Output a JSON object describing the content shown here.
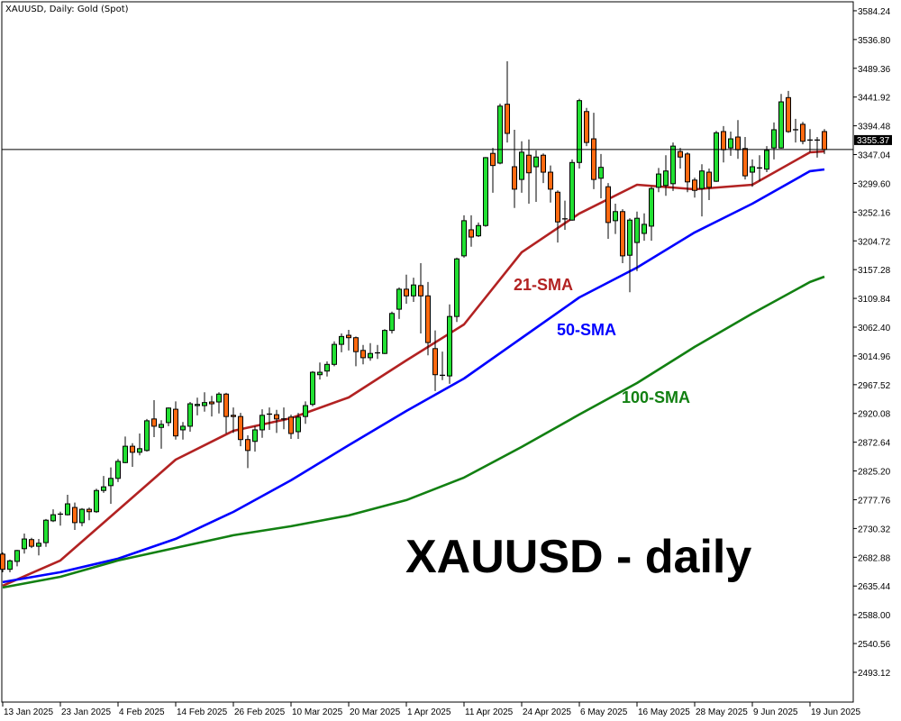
{
  "chart_data": {
    "type": "candlestick",
    "title": "XAUUSD, Daily:  Gold (Spot)",
    "annotation": "XAUUSD - daily",
    "ylim": [
      2444,
      3602
    ],
    "grid": false,
    "y_ticks": [
      "3584.24",
      "3536.80",
      "3489.36",
      "3441.92",
      "3394.48",
      "3347.04",
      "3299.60",
      "3252.16",
      "3204.72",
      "3157.28",
      "3109.84",
      "3062.40",
      "3014.96",
      "2967.52",
      "2920.08",
      "2872.64",
      "2825.20",
      "2777.76",
      "2730.32",
      "2682.88",
      "2635.44",
      "2588.00",
      "2540.56",
      "2493.12"
    ],
    "x_ticks": [
      {
        "bar": 0,
        "label": "13 Jan 2025"
      },
      {
        "bar": 8,
        "label": "23 Jan 2025"
      },
      {
        "bar": 16,
        "label": "4 Feb 2025"
      },
      {
        "bar": 24,
        "label": "14 Feb 2025"
      },
      {
        "bar": 32,
        "label": "26 Feb 2025"
      },
      {
        "bar": 40,
        "label": "10 Mar 2025"
      },
      {
        "bar": 48,
        "label": "20 Mar 2025"
      },
      {
        "bar": 56,
        "label": "1 Apr 2025"
      },
      {
        "bar": 64,
        "label": "11 Apr 2025"
      },
      {
        "bar": 72,
        "label": "24 Apr 2025"
      },
      {
        "bar": 80,
        "label": "6 May 2025"
      },
      {
        "bar": 88,
        "label": "16 May 2025"
      },
      {
        "bar": 96,
        "label": "28 May 2025"
      },
      {
        "bar": 104,
        "label": "9 Jun 2025"
      },
      {
        "bar": 112,
        "label": "19 Jun 2025"
      }
    ],
    "current_price": "3355.37",
    "colors": {
      "bull": "#22e033",
      "bear": "#ff6a10",
      "outline": "#000000",
      "sma21": "#b22222",
      "sma50": "#0000ff",
      "sma100": "#128012"
    },
    "candles_ohlc": [
      [
        2688,
        2691,
        2658,
        2663
      ],
      [
        2663,
        2679,
        2658,
        2677
      ],
      [
        2676,
        2695,
        2668,
        2694
      ],
      [
        2697,
        2722,
        2689,
        2713
      ],
      [
        2712,
        2715,
        2698,
        2701
      ],
      [
        2701,
        2713,
        2686,
        2706
      ],
      [
        2707,
        2746,
        2700,
        2744
      ],
      [
        2743,
        2762,
        2741,
        2753
      ],
      [
        2753,
        2758,
        2735,
        2754
      ],
      [
        2753,
        2786,
        2752,
        2771
      ],
      [
        2765,
        2773,
        2728,
        2740
      ],
      [
        2740,
        2764,
        2734,
        2762
      ],
      [
        2762,
        2765,
        2744,
        2758
      ],
      [
        2758,
        2796,
        2756,
        2793
      ],
      [
        2793,
        2817,
        2789,
        2799
      ],
      [
        2801,
        2831,
        2771,
        2813
      ],
      [
        2813,
        2845,
        2807,
        2841
      ],
      [
        2839,
        2882,
        2838,
        2866
      ],
      [
        2866,
        2871,
        2832,
        2856
      ],
      [
        2856,
        2887,
        2851,
        2862
      ],
      [
        2859,
        2911,
        2857,
        2908
      ],
      [
        2911,
        2942,
        2881,
        2899
      ],
      [
        2897,
        2909,
        2862,
        2902
      ],
      [
        2905,
        2930,
        2899,
        2929
      ],
      [
        2927,
        2940,
        2877,
        2883
      ],
      [
        2893,
        2906,
        2877,
        2899
      ],
      [
        2899,
        2939,
        2890,
        2936
      ],
      [
        2933,
        2946,
        2917,
        2935
      ],
      [
        2933,
        2955,
        2923,
        2938
      ],
      [
        2939,
        2949,
        2915,
        2936
      ],
      [
        2939,
        2955,
        2920,
        2952
      ],
      [
        2952,
        2954,
        2887,
        2915
      ],
      [
        2917,
        2930,
        2888,
        2915
      ],
      [
        2915,
        2921,
        2866,
        2877
      ],
      [
        2877,
        2884,
        2830,
        2859
      ],
      [
        2874,
        2899,
        2857,
        2893
      ],
      [
        2893,
        2927,
        2880,
        2917
      ],
      [
        2918,
        2930,
        2893,
        2919
      ],
      [
        2918,
        2926,
        2888,
        2911
      ],
      [
        2912,
        2930,
        2894,
        2911
      ],
      [
        2914,
        2918,
        2878,
        2887
      ],
      [
        2890,
        2921,
        2878,
        2914
      ],
      [
        2915,
        2940,
        2903,
        2933
      ],
      [
        2935,
        2990,
        2932,
        2988
      ],
      [
        2984,
        3004,
        2976,
        2988
      ],
      [
        2990,
        3006,
        2981,
        3001
      ],
      [
        3001,
        3039,
        2998,
        3034
      ],
      [
        3034,
        3052,
        3021,
        3047
      ],
      [
        3049,
        3058,
        3024,
        3045
      ],
      [
        3045,
        3047,
        2998,
        3022
      ],
      [
        3024,
        3033,
        3001,
        3012
      ],
      [
        3012,
        3036,
        3007,
        3019
      ],
      [
        3019,
        3033,
        3010,
        3020
      ],
      [
        3019,
        3059,
        3018,
        3057
      ],
      [
        3057,
        3088,
        3052,
        3085
      ],
      [
        3092,
        3128,
        3076,
        3125
      ],
      [
        3125,
        3149,
        3101,
        3114
      ],
      [
        3114,
        3144,
        3104,
        3132
      ],
      [
        3131,
        3168,
        3052,
        3114
      ],
      [
        3114,
        3137,
        3016,
        3037
      ],
      [
        3027,
        3057,
        2957,
        2984
      ],
      [
        2982,
        3022,
        2975,
        2983
      ],
      [
        2982,
        3100,
        2969,
        3080
      ],
      [
        3080,
        3177,
        3071,
        3175
      ],
      [
        3180,
        3247,
        3177,
        3238
      ],
      [
        3223,
        3247,
        3195,
        3211
      ],
      [
        3213,
        3235,
        3211,
        3230
      ],
      [
        3230,
        3343,
        3228,
        3342
      ],
      [
        3349,
        3358,
        3284,
        3329
      ],
      [
        3333,
        3431,
        3331,
        3427
      ],
      [
        3430,
        3501,
        3367,
        3382
      ],
      [
        3327,
        3388,
        3259,
        3290
      ],
      [
        3306,
        3369,
        3284,
        3351
      ],
      [
        3346,
        3372,
        3266,
        3317
      ],
      [
        3327,
        3354,
        3269,
        3343
      ],
      [
        3346,
        3349,
        3300,
        3318
      ],
      [
        3318,
        3329,
        3268,
        3290
      ],
      [
        3285,
        3288,
        3202,
        3236
      ],
      [
        3242,
        3271,
        3223,
        3241
      ],
      [
        3239,
        3339,
        3238,
        3334
      ],
      [
        3334,
        3439,
        3324,
        3436
      ],
      [
        3418,
        3424,
        3361,
        3367
      ],
      [
        3373,
        3416,
        3290,
        3306
      ],
      [
        3308,
        3348,
        3275,
        3326
      ],
      [
        3294,
        3300,
        3208,
        3235
      ],
      [
        3238,
        3266,
        3216,
        3253
      ],
      [
        3253,
        3257,
        3168,
        3180
      ],
      [
        3181,
        3242,
        3120,
        3239
      ],
      [
        3202,
        3253,
        3155,
        3242
      ],
      [
        3217,
        3250,
        3205,
        3232
      ],
      [
        3229,
        3294,
        3205,
        3291
      ],
      [
        3293,
        3325,
        3285,
        3315
      ],
      [
        3296,
        3346,
        3279,
        3320
      ],
      [
        3299,
        3367,
        3287,
        3361
      ],
      [
        3352,
        3358,
        3324,
        3343
      ],
      [
        3348,
        3351,
        3285,
        3302
      ],
      [
        3305,
        3309,
        3276,
        3288
      ],
      [
        3291,
        3331,
        3245,
        3320
      ],
      [
        3318,
        3324,
        3272,
        3293
      ],
      [
        3303,
        3386,
        3302,
        3383
      ],
      [
        3385,
        3394,
        3334,
        3355
      ],
      [
        3358,
        3385,
        3345,
        3373
      ],
      [
        3376,
        3404,
        3340,
        3355
      ],
      [
        3357,
        3376,
        3306,
        3312
      ],
      [
        3318,
        3339,
        3294,
        3327
      ],
      [
        3324,
        3346,
        3303,
        3325
      ],
      [
        3323,
        3361,
        3318,
        3354
      ],
      [
        3358,
        3400,
        3339,
        3388
      ],
      [
        3358,
        3447,
        3357,
        3434
      ],
      [
        3441,
        3452,
        3383,
        3385
      ],
      [
        3389,
        3406,
        3367,
        3388
      ],
      [
        3397,
        3401,
        3364,
        3369
      ],
      [
        3372,
        3389,
        3351,
        3371
      ],
      [
        3370,
        3376,
        3342,
        3371
      ],
      [
        3385,
        3389,
        3348,
        3355.37
      ]
    ],
    "sma_bars": [
      0,
      8,
      16,
      24,
      32,
      40,
      48,
      56,
      64,
      72,
      80,
      88,
      96,
      104,
      112,
      114
    ],
    "series": [
      {
        "name": "21-SMA",
        "values": [
          2635.9,
          2677.5,
          2760.7,
          2843.9,
          2891.5,
          2912.3,
          2946.5,
          3007.5,
          3066.9,
          3185.9,
          3249.8,
          3297.3,
          3289.9,
          3297.3,
          3350.8,
          3352.3
        ]
      },
      {
        "name": "50-SMA",
        "values": [
          2641.8,
          2658.2,
          2680.5,
          2713.2,
          2757.7,
          2809.8,
          2867.7,
          2924.2,
          2977.7,
          3044.6,
          3111.5,
          3160.6,
          3218.6,
          3266.1,
          3319.7,
          3322.6
        ]
      },
      {
        "name": "100-SMA",
        "values": [
          2632.9,
          2650.7,
          2677.5,
          2698.3,
          2719.1,
          2734.0,
          2751.8,
          2777.1,
          2814.3,
          2864.8,
          2918.3,
          2970.3,
          3029.8,
          3084.8,
          3136.8,
          3145.7
        ]
      }
    ]
  }
}
